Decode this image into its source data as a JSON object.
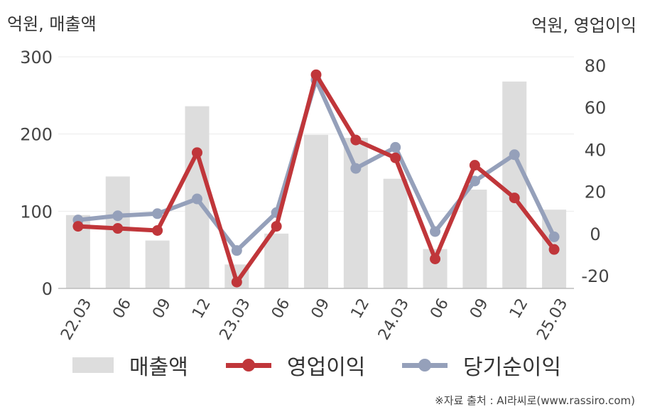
{
  "units": {
    "left": "억원, 매출액",
    "right": "억원, 영업이익"
  },
  "source": "※자료 출처 : AI라씨로(www.rassiro.com)",
  "colors": {
    "bar": "#dddddd",
    "op": "#c0363a",
    "net": "#95a0ba",
    "grid": "#ebebeb",
    "axis": "#bbbbbb",
    "text": "#444444"
  },
  "chart_data": {
    "type": "bar+line",
    "categories": [
      "22.03",
      "06",
      "09",
      "12",
      "23.03",
      "06",
      "09",
      "12",
      "24.03",
      "06",
      "09",
      "12",
      "25.03"
    ],
    "series": [
      {
        "name": "매출액",
        "type": "bar",
        "axis": "left",
        "values": [
          95,
          145,
          62,
          236,
          31,
          71,
          199,
          195,
          142,
          51,
          128,
          268,
          102
        ]
      },
      {
        "name": "영업이익",
        "type": "line",
        "axis": "right",
        "values": [
          3.5,
          2.5,
          1.5,
          38.5,
          -23,
          3.5,
          75.5,
          44.5,
          36,
          -12,
          32.5,
          17,
          -7.5
        ]
      },
      {
        "name": "당기순이익",
        "type": "line",
        "axis": "right",
        "values": [
          6.5,
          8.5,
          9.5,
          16.5,
          -8,
          10,
          73,
          31,
          41,
          1,
          25,
          37.5,
          -1.5
        ]
      }
    ],
    "y_left": {
      "ticks": [
        "300",
        "200",
        "100",
        "0"
      ],
      "min": 0,
      "max": 300
    },
    "y_right": {
      "ticks": [
        "80",
        "60",
        "40",
        "20",
        "0",
        "-20"
      ],
      "min": -26,
      "max": 84
    },
    "grid": true,
    "legend": {
      "position": "bottom",
      "items": [
        "매출액",
        "영업이익",
        "당기순이익"
      ]
    }
  }
}
